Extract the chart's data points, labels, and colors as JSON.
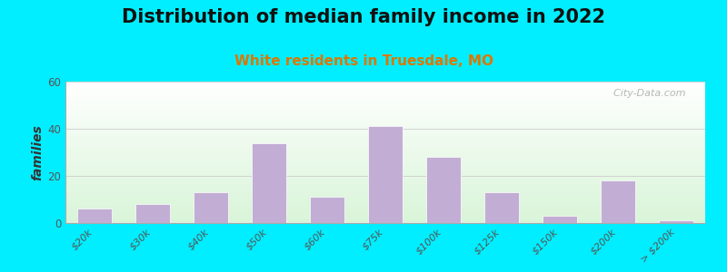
{
  "title": "Distribution of median family income in 2022",
  "subtitle": "White residents in Truesdale, MO",
  "ylabel": "families",
  "categories": [
    "$20k",
    "$30k",
    "$40k",
    "$50k",
    "$60k",
    "$75k",
    "$100k",
    "$125k",
    "$150k",
    "$200k",
    "> $200k"
  ],
  "values": [
    6,
    8,
    13,
    34,
    11,
    41,
    28,
    13,
    3,
    18,
    1
  ],
  "bar_color": "#c2aed4",
  "bar_edge_color": "#ffffff",
  "ylim": [
    0,
    60
  ],
  "yticks": [
    0,
    20,
    40,
    60
  ],
  "background_outer": "#00eeff",
  "background_inner_top_left": "#d8efd0",
  "background_inner_bottom_right": "#f5f5f0",
  "title_fontsize": 15,
  "subtitle_fontsize": 11,
  "subtitle_color": "#dd7700",
  "ylabel_fontsize": 10,
  "watermark_text": "  City-Data.com",
  "bar_width": 0.6
}
